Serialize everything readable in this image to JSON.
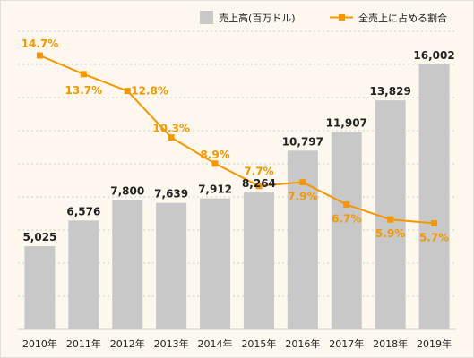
{
  "chart_data": {
    "type": "bar",
    "categories": [
      "2010年",
      "2011年",
      "2012年",
      "2013年",
      "2014年",
      "2015年",
      "2016年",
      "2017年",
      "2018年",
      "2019年"
    ],
    "series": [
      {
        "name": "売上高(百万ドル)",
        "type": "bar",
        "values": [
          5025,
          6576,
          7800,
          7639,
          7912,
          8264,
          10797,
          11907,
          13829,
          16002
        ],
        "labels": [
          "5,025",
          "6,576",
          "7,800",
          "7,639",
          "7,912",
          "8,264",
          "10,797",
          "11,907",
          "13,829",
          "16,002"
        ]
      },
      {
        "name": "全売上に占める割合",
        "type": "line",
        "values": [
          14.7,
          13.7,
          12.8,
          10.3,
          8.9,
          7.7,
          7.9,
          6.7,
          5.9,
          5.7
        ],
        "labels": [
          "14.7%",
          "13.7%",
          "12.8%",
          "10.3%",
          "8.9%",
          "7.7%",
          "7.9%",
          "6.7%",
          "5.9%",
          "5.7%"
        ]
      }
    ],
    "ylim": [
      0,
      18000
    ],
    "y2lim": [
      0,
      16
    ],
    "grid": true,
    "legend_position": "top-right",
    "colors": {
      "bar": "#c8c8c8",
      "line": "#f39800",
      "grid": "#cfcfcf",
      "background": "#fdf7ee",
      "border": "#e3ded6",
      "text": "#222222"
    }
  }
}
